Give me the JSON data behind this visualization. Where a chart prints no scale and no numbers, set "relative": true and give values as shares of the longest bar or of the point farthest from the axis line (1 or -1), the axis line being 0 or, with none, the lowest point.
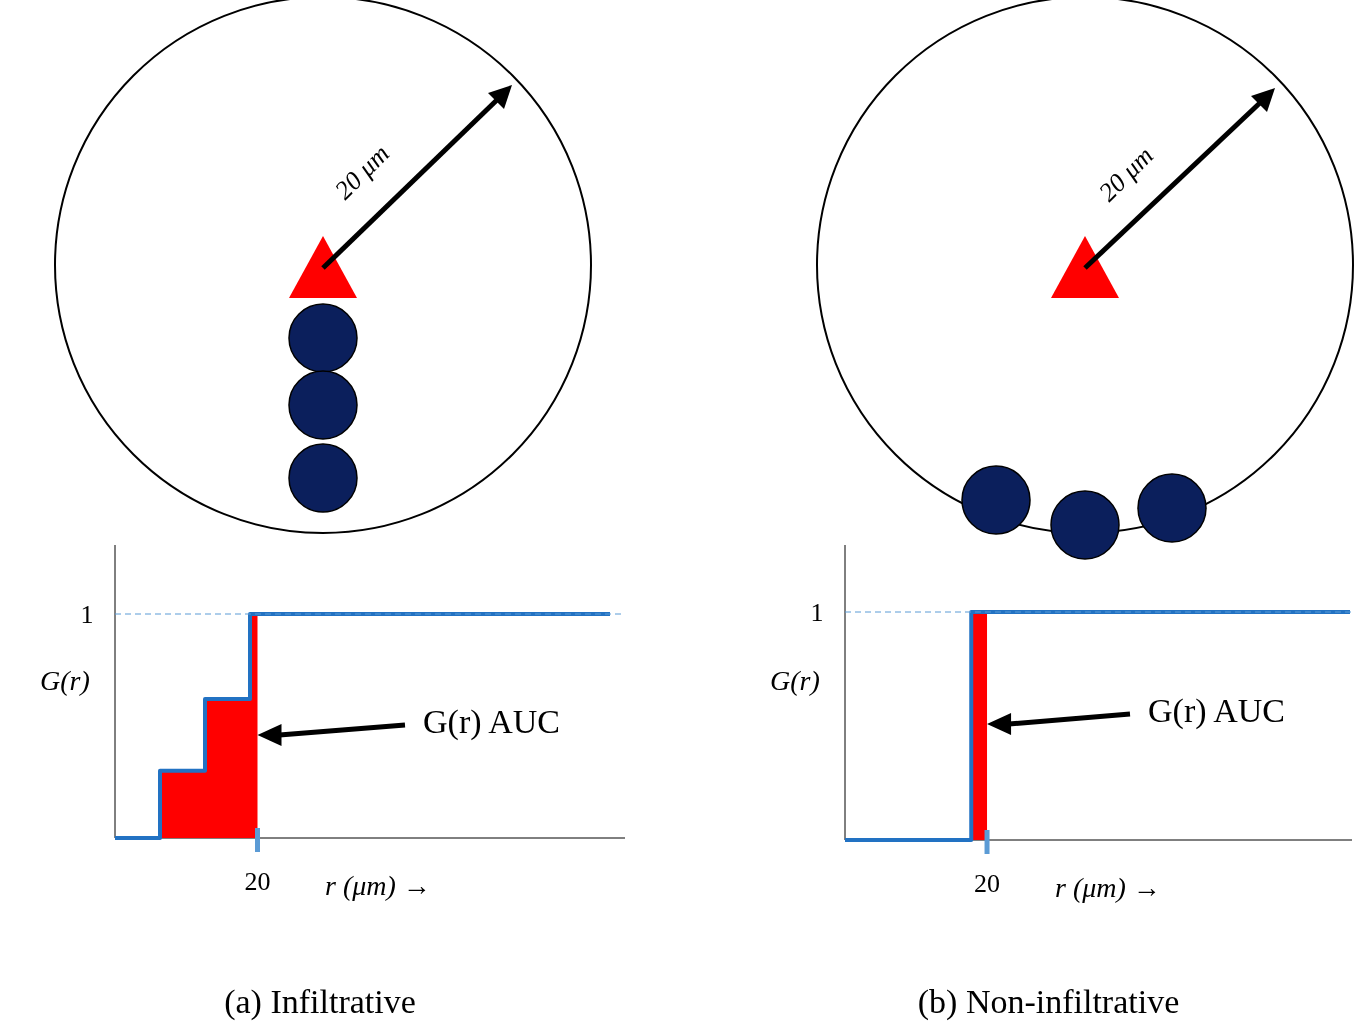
{
  "chart_data": [
    {
      "type": "step",
      "title": "(a) Infiltrative",
      "ylabel": "G(r)",
      "xlabel": "r (μm) →",
      "relative": true,
      "categories": [
        null,
        null,
        null,
        null,
        null,
        null,
        null,
        null,
        null,
        null,
        null,
        null,
        null,
        null,
        null,
        null,
        null,
        null,
        null,
        null,
        null,
        null,
        null,
        null,
        null,
        null,
        null,
        null,
        null,
        null,
        null,
        null,
        null,
        null,
        null,
        null,
        null,
        null,
        null,
        null,
        null,
        null,
        null,
        null,
        null,
        null,
        null,
        null,
        null,
        null,
        null,
        null,
        null,
        null,
        null,
        null,
        null,
        null,
        null,
        null,
        null,
        null,
        null,
        null,
        null,
        null,
        null
      ],
      "series": [
        {
          "color": "#ff0000",
          "type": "area",
          "values": [
            null,
            null,
            null,
            null,
            null,
            null,
            0.3,
            0.3,
            0.3,
            0.3,
            0.3,
            0.3,
            0.62,
            0.62,
            0.62,
            0.62,
            0.62,
            0.62,
            1,
            1,
            null,
            null,
            null,
            null,
            null,
            null,
            null,
            null,
            null,
            null,
            null,
            null,
            null,
            null,
            null,
            null,
            null,
            null,
            null,
            null,
            null,
            null,
            null,
            null,
            null,
            null,
            null,
            null,
            null,
            null,
            null,
            null,
            null,
            null,
            null,
            null,
            null,
            null,
            null,
            null,
            null,
            null,
            null,
            null,
            null,
            null,
            null
          ]
        },
        {
          "color": "#2272c3",
          "values": [
            0,
            0,
            0,
            0,
            0,
            0,
            0.3,
            0.3,
            0.3,
            0.3,
            0.3,
            0.3,
            0.62,
            0.62,
            0.62,
            0.62,
            0.62,
            0.62,
            1,
            1,
            1,
            1,
            1,
            1,
            1,
            1,
            1,
            1,
            1,
            1,
            1,
            1,
            1,
            1,
            1,
            1,
            1,
            1,
            1,
            1,
            1,
            1,
            1,
            1,
            1,
            1,
            1,
            1,
            1,
            1,
            1,
            1,
            1,
            1,
            1,
            1,
            1,
            1,
            1,
            1,
            1,
            1,
            1,
            1,
            1,
            1,
            1
          ]
        }
      ],
      "ref_lines": [
        {
          "axis": "y",
          "value": 1,
          "label": "1",
          "color": "#5b9bd5",
          "line_style": "dashed"
        }
      ],
      "annotations": [
        "20 μm",
        "G(r) AUC",
        "20"
      ]
    },
    {
      "type": "step",
      "title": "(b) Non-infiltrative",
      "ylabel": "G(r)",
      "xlabel": "r (μm) →",
      "relative": true,
      "categories": [
        null,
        null,
        null,
        null,
        null,
        null,
        null,
        null,
        null,
        null,
        null,
        null,
        null,
        null,
        null,
        null,
        null,
        null,
        null,
        null,
        null,
        null,
        null,
        null,
        null,
        null,
        null,
        null,
        null,
        null,
        null,
        null,
        null
      ],
      "series": [
        {
          "color": "#ff0000",
          "type": "area",
          "values": [
            null,
            null,
            null,
            null,
            null,
            null,
            null,
            null,
            1,
            1,
            null,
            null,
            null,
            null,
            null,
            null,
            null,
            null,
            null,
            null,
            null,
            null,
            null,
            null,
            null,
            null,
            null,
            null,
            null,
            null,
            null,
            null,
            null
          ]
        },
        {
          "color": "#2272c3",
          "values": [
            0,
            0,
            0,
            0,
            0,
            0,
            0,
            0,
            1,
            1,
            1,
            1,
            1,
            1,
            1,
            1,
            1,
            1,
            1,
            1,
            1,
            1,
            1,
            1,
            1,
            1,
            1,
            1,
            1,
            1,
            1,
            1,
            1
          ]
        }
      ],
      "ref_lines": [
        {
          "axis": "y",
          "value": 1,
          "label": "1",
          "color": "#5b9bd5",
          "line_style": "dashed"
        }
      ],
      "annotations": [
        "20 μm",
        "G(r) AUC",
        "20"
      ]
    }
  ]
}
